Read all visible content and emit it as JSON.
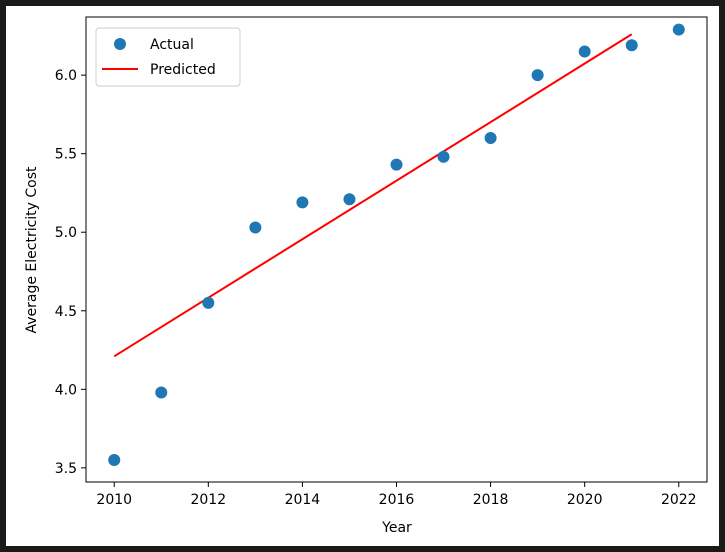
{
  "chart_data": {
    "type": "scatter",
    "xlabel": "Year",
    "ylabel": "Average Electricity Cost",
    "xlim": [
      2009.4,
      2022.6
    ],
    "ylim": [
      3.41,
      6.37
    ],
    "xticks": [
      2010,
      2012,
      2014,
      2016,
      2018,
      2020,
      2022
    ],
    "yticks": [
      3.5,
      4.0,
      4.5,
      5.0,
      5.5,
      6.0
    ],
    "ytick_labels": [
      "3.5",
      "4.0",
      "4.5",
      "5.0",
      "5.5",
      "6.0"
    ],
    "legend": {
      "position": "top-left",
      "entries": [
        "Actual",
        "Predicted"
      ]
    },
    "series": [
      {
        "name": "Actual",
        "kind": "scatter",
        "color": "#1f77b4",
        "x": [
          2010,
          2011,
          2012,
          2013,
          2014,
          2015,
          2016,
          2017,
          2018,
          2019,
          2020,
          2021,
          2022
        ],
        "y": [
          3.55,
          3.98,
          4.55,
          5.03,
          5.19,
          5.21,
          5.43,
          5.48,
          5.6,
          6.0,
          6.15,
          6.19,
          6.29
        ]
      },
      {
        "name": "Predicted",
        "kind": "line",
        "color": "#ff0000",
        "x": [
          2010,
          2021
        ],
        "y": [
          4.21,
          6.26
        ]
      }
    ]
  }
}
